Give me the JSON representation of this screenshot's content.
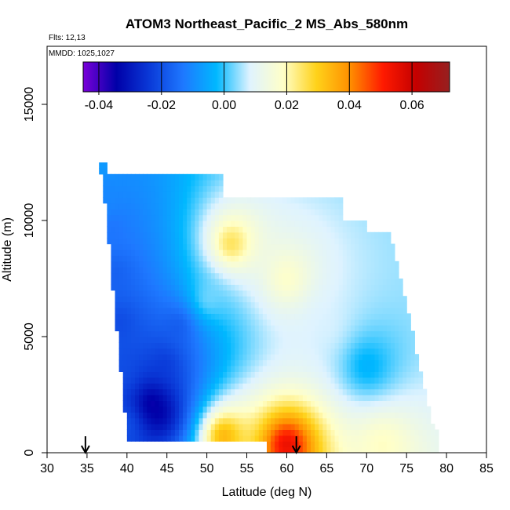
{
  "chart_data": {
    "type": "heatmap",
    "title": "ATOM3 Northeast_Pacific_2 MS_Abs_580nm",
    "flights_label": "Flts: 12,13",
    "mmdd_label": "MMDD: 1025,1027",
    "xlabel": "Latitude (deg N)",
    "ylabel": "Altitude (m)",
    "xlim": [
      30,
      85
    ],
    "ylim": [
      0,
      17500
    ],
    "x_ticks": [
      "30",
      "35",
      "40",
      "45",
      "50",
      "55",
      "60",
      "65",
      "70",
      "75",
      "80",
      "85"
    ],
    "y_ticks": [
      "0",
      "5000",
      "10000",
      "15000"
    ],
    "colorbar": {
      "min": -0.045,
      "max": 0.072,
      "tick_labels": [
        "-0.04",
        "-0.02",
        "0.00",
        "0.02",
        "0.04",
        "0.06"
      ],
      "tick_values": [
        -0.04,
        -0.02,
        0.0,
        0.02,
        0.04,
        0.06
      ],
      "stops": [
        "#7a00d9",
        "#0000a8",
        "#0a3ad8",
        "#1e78ff",
        "#00b8ff",
        "#dff3ff",
        "#ffffc8",
        "#ffd21a",
        "#ff9000",
        "#ff1a00",
        "#c40000",
        "#962020"
      ]
    },
    "arrows_lat": [
      34.8,
      61.2
    ],
    "profiles": [
      {
        "lat": 36.8,
        "alt_min": 12000,
        "alt_max": 12400,
        "value": -0.005
      },
      {
        "lat": 37.2,
        "alt_min": 11400,
        "alt_max": 11900,
        "value": -0.012
      },
      {
        "lat": 37.5,
        "alt_min": 9600,
        "alt_max": 11400,
        "value": -0.01
      },
      {
        "lat": 38.0,
        "alt_min": 9000,
        "alt_max": 10700,
        "value": -0.015
      },
      {
        "lat": 38.6,
        "alt_min": 6500,
        "alt_max": 9000,
        "value": -0.018
      },
      {
        "lat": 39.2,
        "alt_min": 4800,
        "alt_max": 6500,
        "value": -0.022
      },
      {
        "lat": 39.7,
        "alt_min": 2000,
        "alt_max": 4800,
        "value": -0.02
      },
      {
        "lat": 40.2,
        "alt_min": 600,
        "alt_max": 2000,
        "value": -0.018
      },
      {
        "lat": 43.0,
        "alt_min": 1600,
        "alt_max": 2700,
        "value": -0.042
      },
      {
        "lat": 44.0,
        "alt_min": 1000,
        "alt_max": 2400,
        "value": -0.038
      },
      {
        "lat": 44.8,
        "alt_min": 2800,
        "alt_max": 5000,
        "value": -0.025
      },
      {
        "lat": 46.5,
        "alt_min": 4000,
        "alt_max": 7000,
        "value": -0.02
      },
      {
        "lat": 50.0,
        "alt_min": 5200,
        "alt_max": 8000,
        "value": 0.005
      },
      {
        "lat": 53.0,
        "alt_min": 8600,
        "alt_max": 9400,
        "value": 0.03
      },
      {
        "lat": 60.0,
        "alt_min": 7000,
        "alt_max": 8000,
        "value": 0.02
      },
      {
        "lat": 65.0,
        "alt_min": 4500,
        "alt_max": 6500,
        "value": 0.008
      },
      {
        "lat": 70.0,
        "alt_min": 3000,
        "alt_max": 4500,
        "value": -0.005
      },
      {
        "lat": 60.0,
        "alt_min": 0,
        "alt_max": 700,
        "value": 0.06
      },
      {
        "lat": 52.0,
        "alt_min": 500,
        "alt_max": 1000,
        "value": 0.04
      },
      {
        "lat": 72.0,
        "alt_min": 0,
        "alt_max": 700,
        "value": 0.02
      }
    ]
  }
}
